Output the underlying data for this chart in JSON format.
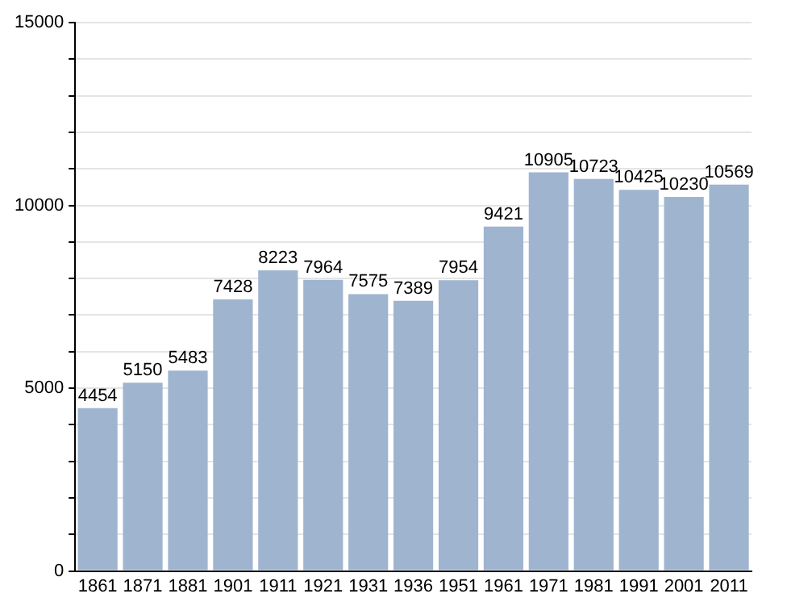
{
  "chart_data": {
    "type": "bar",
    "categories": [
      "1861",
      "1871",
      "1881",
      "1901",
      "1911",
      "1921",
      "1931",
      "1936",
      "1951",
      "1961",
      "1971",
      "1981",
      "1991",
      "2001",
      "2011"
    ],
    "values": [
      4454,
      5150,
      5483,
      7428,
      8223,
      7964,
      7575,
      7389,
      7954,
      9421,
      10905,
      10723,
      10425,
      10230,
      10569
    ],
    "color": "#9fb5cf",
    "ylim": [
      0,
      15000
    ],
    "yticks": [
      0,
      {
        "value": 1000,
        "label": null
      },
      {
        "value": 2000,
        "label": null
      },
      {
        "value": 3000,
        "label": null
      },
      {
        "value": 4000,
        "label": null
      },
      5000,
      {
        "value": 6000,
        "label": null
      },
      {
        "value": 7000,
        "label": null
      },
      {
        "value": 8000,
        "label": null
      },
      {
        "value": 9000,
        "label": null
      },
      10000,
      {
        "value": 11000,
        "label": null
      },
      {
        "value": 12000,
        "label": null
      },
      {
        "value": 13000,
        "label": null
      },
      {
        "value": 14000,
        "label": null
      },
      15000
    ],
    "grid": "y",
    "data_labels": true
  }
}
